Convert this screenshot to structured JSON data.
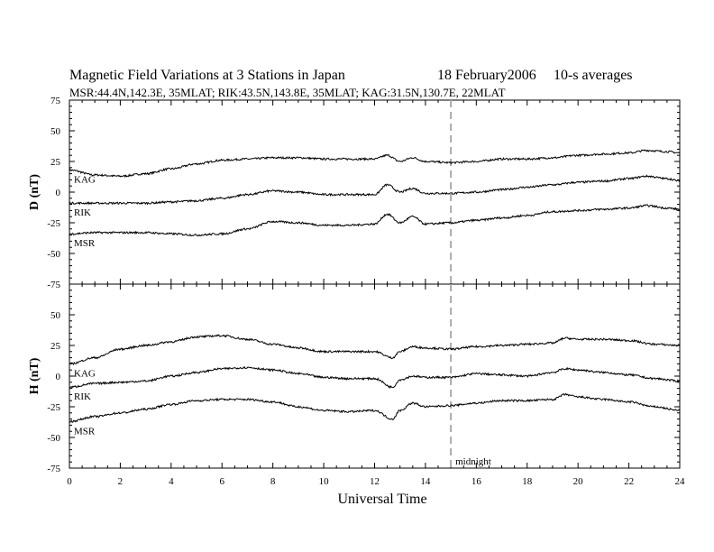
{
  "header": {
    "title_left": "Magnetic Field Variations at 3 Stations in Japan",
    "title_date": "18 February2006",
    "title_right": "10-s averages",
    "subtitle": "MSR:44.4N,142.3E, 35MLAT;  RIK:43.5N,143.8E, 35MLAT;  KAG:31.5N,130.7E, 22MLAT"
  },
  "chart_data": [
    {
      "type": "line",
      "panel": "D",
      "ylabel": "D (nT)",
      "xlabel": "",
      "xlim": [
        0,
        24
      ],
      "ylim": [
        -75,
        75
      ],
      "yticks": [
        75,
        50,
        25,
        0,
        -25,
        -50,
        -75
      ],
      "x": [
        0,
        1,
        2,
        3,
        4,
        5,
        6,
        7,
        8,
        9,
        10,
        11,
        12,
        12.5,
        13,
        13.5,
        14,
        15,
        16,
        17,
        18,
        19,
        20,
        21,
        22,
        22.7,
        23.5,
        24
      ],
      "series": [
        {
          "name": "KAG",
          "values": [
            18,
            14,
            13,
            15,
            19,
            23,
            26,
            27,
            28,
            28,
            27,
            27,
            27,
            30,
            25,
            28,
            25,
            24,
            25,
            27,
            27,
            28,
            30,
            31,
            32,
            34,
            33,
            32
          ]
        },
        {
          "name": "RIK",
          "values": [
            -9,
            -9,
            -9,
            -9,
            -8,
            -7,
            -5,
            -2,
            1,
            0,
            -2,
            -2,
            -2,
            6,
            0,
            3,
            -1,
            -1,
            0,
            2,
            4,
            6,
            8,
            9,
            11,
            13,
            11,
            9
          ]
        },
        {
          "name": "MSR",
          "values": [
            -34,
            -33,
            -33,
            -33,
            -34,
            -35,
            -34,
            -30,
            -24,
            -25,
            -27,
            -27,
            -26,
            -18,
            -25,
            -20,
            -26,
            -25,
            -23,
            -21,
            -19,
            -16,
            -15,
            -14,
            -13,
            -11,
            -13,
            -14
          ]
        }
      ]
    },
    {
      "type": "line",
      "panel": "H",
      "ylabel": "H (nT)",
      "xlabel": "Universal Time",
      "xlim": [
        0,
        24
      ],
      "ylim": [
        -75,
        75
      ],
      "yticks": [
        75,
        50,
        25,
        0,
        -25,
        -50,
        -75
      ],
      "xticks": [
        0,
        2,
        4,
        6,
        8,
        10,
        12,
        14,
        16,
        18,
        20,
        22,
        24
      ],
      "x": [
        0,
        1,
        2,
        3,
        4,
        5,
        6,
        7,
        8,
        9,
        10,
        11,
        12,
        12.7,
        13,
        13.5,
        14,
        15,
        16,
        17,
        18,
        19,
        19.5,
        20,
        21,
        22,
        23,
        24
      ],
      "series": [
        {
          "name": "KAG",
          "values": [
            10,
            15,
            22,
            25,
            28,
            32,
            33,
            30,
            26,
            23,
            20,
            20,
            20,
            15,
            20,
            24,
            23,
            22,
            24,
            25,
            26,
            27,
            31,
            30,
            30,
            29,
            26,
            25
          ]
        },
        {
          "name": "RIK",
          "values": [
            -9,
            -6,
            -5,
            -4,
            0,
            3,
            6,
            7,
            5,
            2,
            -1,
            -2,
            -2,
            -9,
            -3,
            0,
            -1,
            -1,
            2,
            1,
            0,
            3,
            6,
            5,
            3,
            1,
            -2,
            -4
          ]
        },
        {
          "name": "MSR",
          "values": [
            -37,
            -33,
            -30,
            -27,
            -23,
            -20,
            -19,
            -19,
            -21,
            -25,
            -28,
            -29,
            -28,
            -35,
            -28,
            -22,
            -25,
            -24,
            -22,
            -20,
            -20,
            -19,
            -15,
            -17,
            -19,
            -21,
            -25,
            -28
          ]
        }
      ]
    }
  ],
  "marker": {
    "x": 15,
    "label": "midnight",
    "color": "#aaaaaa"
  },
  "colors": {
    "line": "#000000",
    "axis": "#000000"
  }
}
